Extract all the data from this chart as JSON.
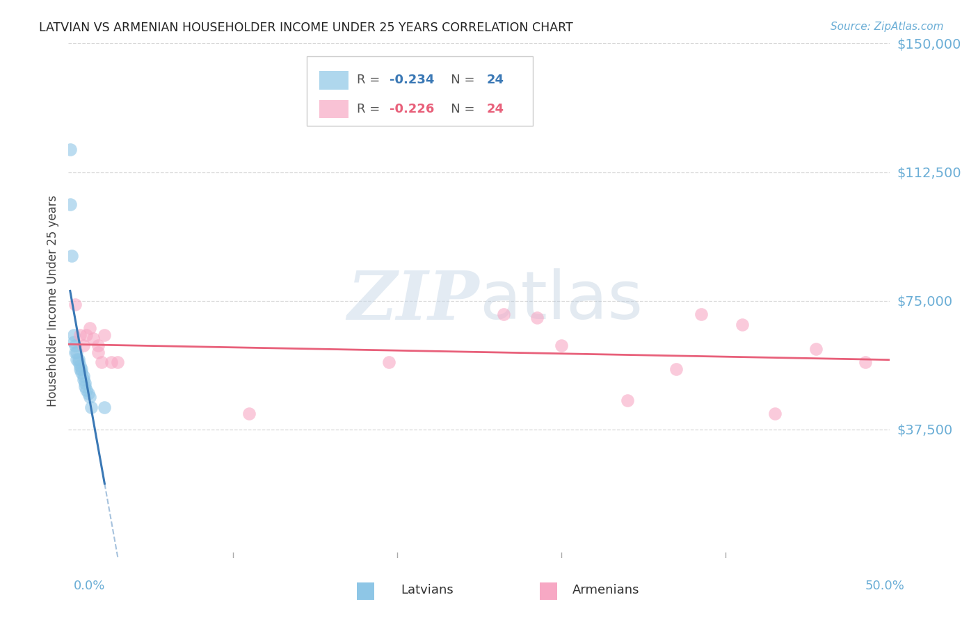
{
  "title": "LATVIAN VS ARMENIAN HOUSEHOLDER INCOME UNDER 25 YEARS CORRELATION CHART",
  "source": "Source: ZipAtlas.com",
  "ylabel": "Householder Income Under 25 years",
  "xlim": [
    0.0,
    0.5
  ],
  "ylim": [
    0,
    150000
  ],
  "yticks": [
    0,
    37500,
    75000,
    112500,
    150000
  ],
  "ytick_labels": [
    "",
    "$37,500",
    "$75,000",
    "$112,500",
    "$150,000"
  ],
  "xticks": [
    0.0,
    0.1,
    0.2,
    0.3,
    0.4,
    0.5
  ],
  "latvian_r": "-0.234",
  "latvian_n": "24",
  "armenian_r": "-0.226",
  "armenian_n": "24",
  "latvian_color": "#8ec6e6",
  "armenian_color": "#f7a8c4",
  "latvian_line_color": "#3a78b5",
  "armenian_line_color": "#e8607a",
  "latvian_x": [
    0.001,
    0.001,
    0.002,
    0.003,
    0.003,
    0.004,
    0.004,
    0.005,
    0.005,
    0.006,
    0.006,
    0.007,
    0.007,
    0.008,
    0.008,
    0.009,
    0.009,
    0.01,
    0.01,
    0.011,
    0.012,
    0.013,
    0.014,
    0.022
  ],
  "latvian_y": [
    119000,
    103000,
    88000,
    65000,
    63000,
    62000,
    60000,
    60000,
    58000,
    58000,
    57000,
    56000,
    55000,
    55000,
    54000,
    53000,
    52000,
    51000,
    50000,
    49000,
    48000,
    47000,
    44000,
    44000
  ],
  "armenian_x": [
    0.004,
    0.007,
    0.009,
    0.011,
    0.013,
    0.015,
    0.018,
    0.018,
    0.02,
    0.022,
    0.026,
    0.03,
    0.11,
    0.195,
    0.265,
    0.285,
    0.3,
    0.34,
    0.37,
    0.385,
    0.41,
    0.43,
    0.455,
    0.485
  ],
  "armenian_y": [
    74000,
    65000,
    62000,
    65000,
    67000,
    64000,
    62000,
    60000,
    57000,
    65000,
    57000,
    57000,
    42000,
    57000,
    71000,
    70000,
    62000,
    46000,
    55000,
    71000,
    68000,
    42000,
    61000,
    57000
  ],
  "watermark_zip": "ZIP",
  "watermark_atlas": "atlas",
  "background_color": "#ffffff",
  "grid_color": "#d8d8d8",
  "title_color": "#222222",
  "source_color": "#6baed6",
  "ytick_color": "#6baed6",
  "xtick_color": "#6baed6",
  "ylabel_color": "#444444"
}
